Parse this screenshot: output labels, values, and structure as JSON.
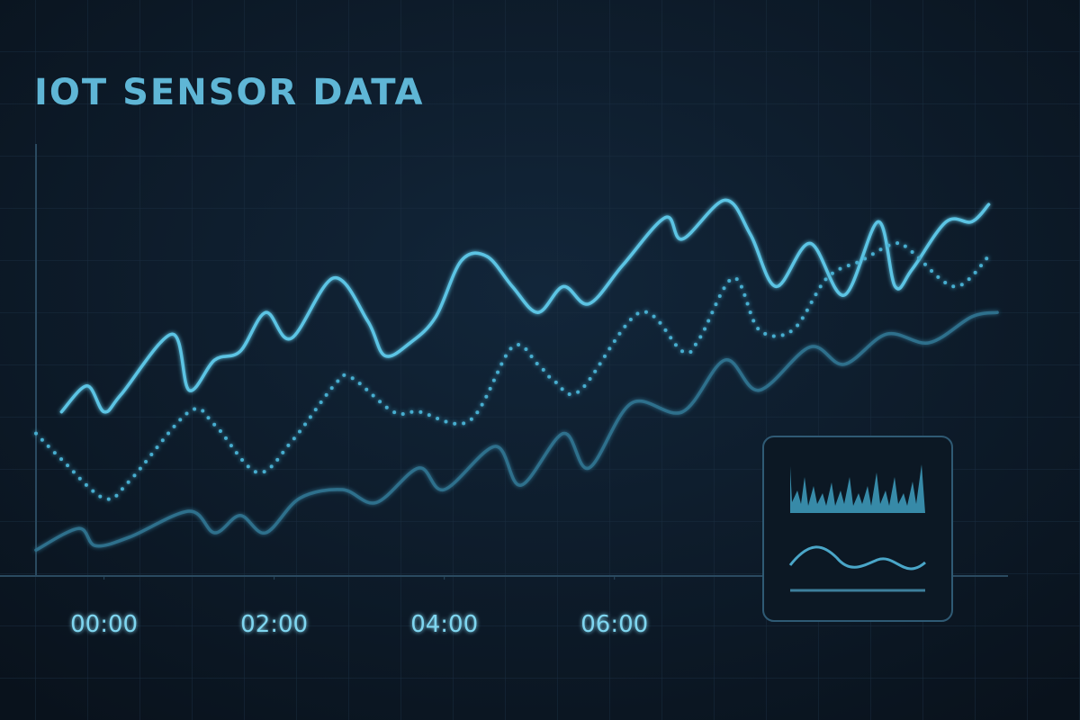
{
  "chart_data": {
    "type": "line",
    "title": "IOT SENSOR DATA",
    "xlim": [
      -0.8,
      10.6
    ],
    "ylim": [
      0,
      100
    ],
    "xticks": [
      {
        "value": 0,
        "label": "00:00"
      },
      {
        "value": 2,
        "label": "02:00"
      },
      {
        "value": 4,
        "label": "04:00"
      },
      {
        "value": 6,
        "label": "06:00"
      }
    ],
    "series": [
      {
        "color": "#5cc4e4",
        "style": "solid",
        "x": [
          -0.5,
          -0.2,
          0,
          0.2,
          0.8,
          1.0,
          1.3,
          1.6,
          1.9,
          2.2,
          2.7,
          3.1,
          3.3,
          3.6,
          3.9,
          4.2,
          4.5,
          4.8,
          5.1,
          5.4,
          5.7,
          6.1,
          6.6,
          6.8,
          7.3,
          7.6,
          7.9,
          8.3,
          8.7,
          9.1,
          9.3,
          9.5,
          9.9,
          10.2,
          10.4
        ],
        "values": [
          38,
          44,
          38,
          42,
          56,
          43,
          50,
          52,
          61,
          55,
          69,
          59,
          51,
          54,
          60,
          73,
          74,
          67,
          61,
          67,
          63,
          72,
          83,
          78,
          87,
          79,
          67,
          77,
          65,
          82,
          67,
          71,
          82,
          82,
          86
        ]
      },
      {
        "color": "#46aed0",
        "style": "dotted",
        "x": [
          -0.8,
          -0.5,
          0,
          0.3,
          1.0,
          1.3,
          1.8,
          2.2,
          2.7,
          2.9,
          3.4,
          3.7,
          4.3,
          4.8,
          5.1,
          5.3,
          5.6,
          6.3,
          6.8,
          7.0,
          7.4,
          7.7,
          8.1,
          8.5,
          8.9,
          9.3,
          9.5,
          10.0,
          10.4
        ],
        "values": [
          33,
          27,
          18,
          22,
          38,
          35,
          24,
          31,
          44,
          46,
          38,
          38,
          36,
          53,
          49,
          45,
          43,
          61,
          52,
          55,
          69,
          57,
          57,
          69,
          73,
          77,
          75,
          67,
          74
        ]
      },
      {
        "color": "#2f6f8c",
        "style": "solid",
        "x": [
          -0.8,
          -0.3,
          -0.1,
          0.3,
          1.0,
          1.3,
          1.6,
          1.9,
          2.3,
          2.8,
          3.2,
          3.7,
          4.0,
          4.6,
          4.9,
          5.4,
          5.7,
          6.2,
          6.8,
          7.3,
          7.7,
          8.3,
          8.7,
          9.2,
          9.7,
          10.2,
          10.5
        ],
        "values": [
          6,
          11,
          7,
          9,
          15,
          10,
          14,
          10,
          18,
          20,
          17,
          25,
          20,
          30,
          21,
          33,
          25,
          40,
          38,
          50,
          43,
          53,
          49,
          56,
          54,
          60,
          61
        ]
      }
    ]
  }
}
